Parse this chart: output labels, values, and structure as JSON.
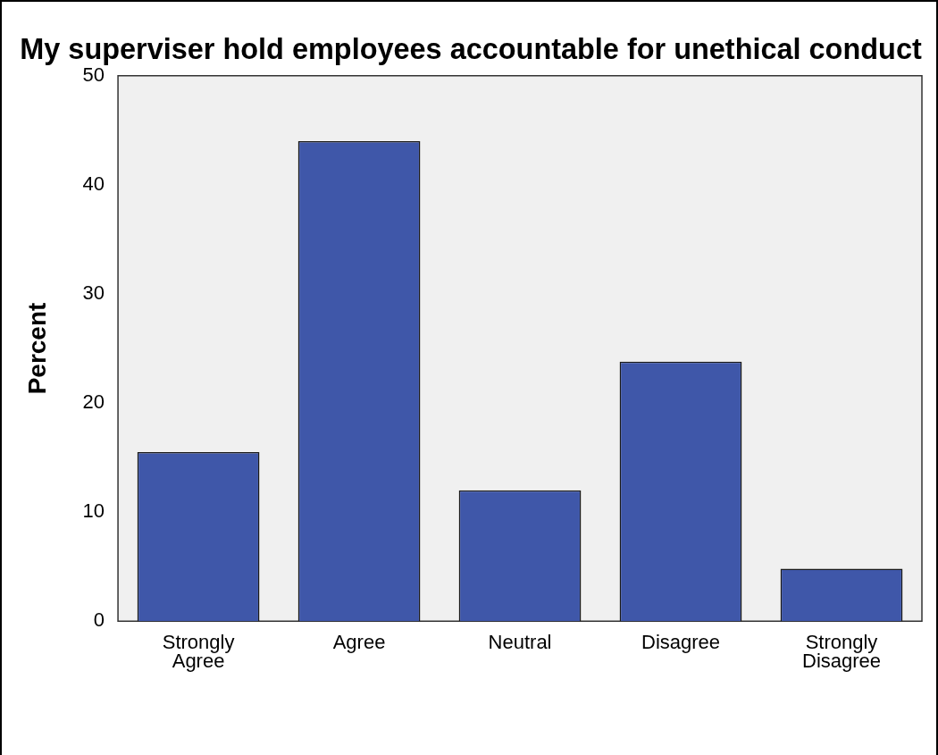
{
  "chart_data": {
    "type": "bar",
    "title": "My superviser hold employees accountable for unethical conduct",
    "ylabel": "Percent",
    "categories": [
      "Strongly Agree",
      "Agree",
      "Neutral",
      "Disagree",
      "Strongly Disagree"
    ],
    "values": [
      15.5,
      44,
      12,
      23.8,
      4.8
    ],
    "color": "#3f57a9",
    "ylim": [
      0,
      50
    ],
    "yticks": [
      0,
      10,
      20,
      30,
      40,
      50
    ],
    "grid": false,
    "legend": false
  }
}
